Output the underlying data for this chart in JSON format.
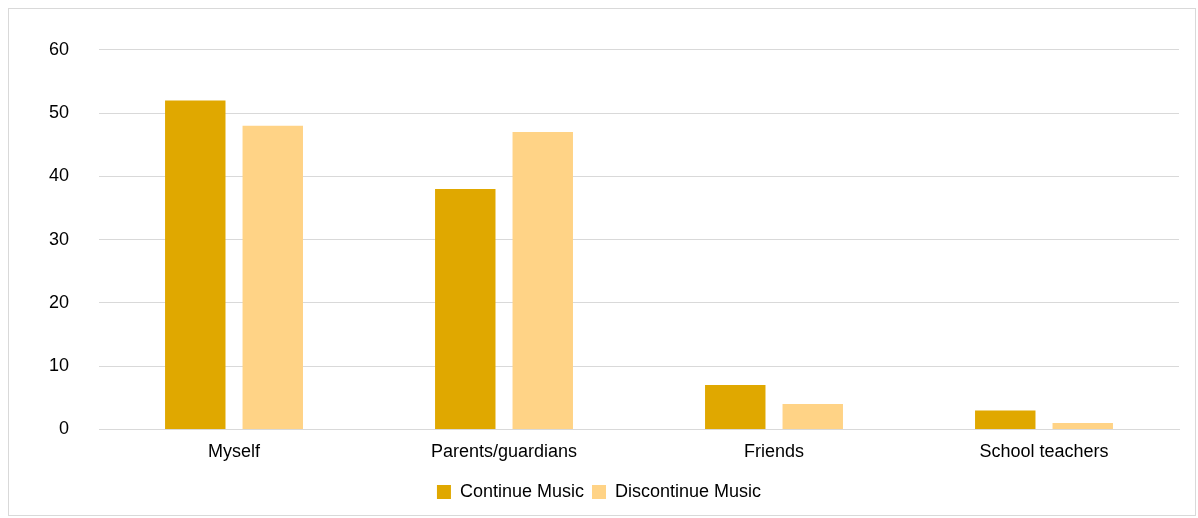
{
  "chart_data": {
    "type": "bar",
    "categories": [
      "Myself",
      "Parents/guardians",
      "Friends",
      "School teachers"
    ],
    "series": [
      {
        "name": "Continue Music",
        "color": "#e0a800",
        "values": [
          52,
          38,
          7,
          3
        ]
      },
      {
        "name": "Discontinue Music",
        "color": "#ffd386",
        "values": [
          48,
          47,
          4,
          1
        ]
      }
    ],
    "ylim": [
      0,
      60
    ],
    "yticks": [
      0,
      10,
      20,
      30,
      40,
      50,
      60
    ],
    "grid": "y",
    "legend": "bottom"
  }
}
